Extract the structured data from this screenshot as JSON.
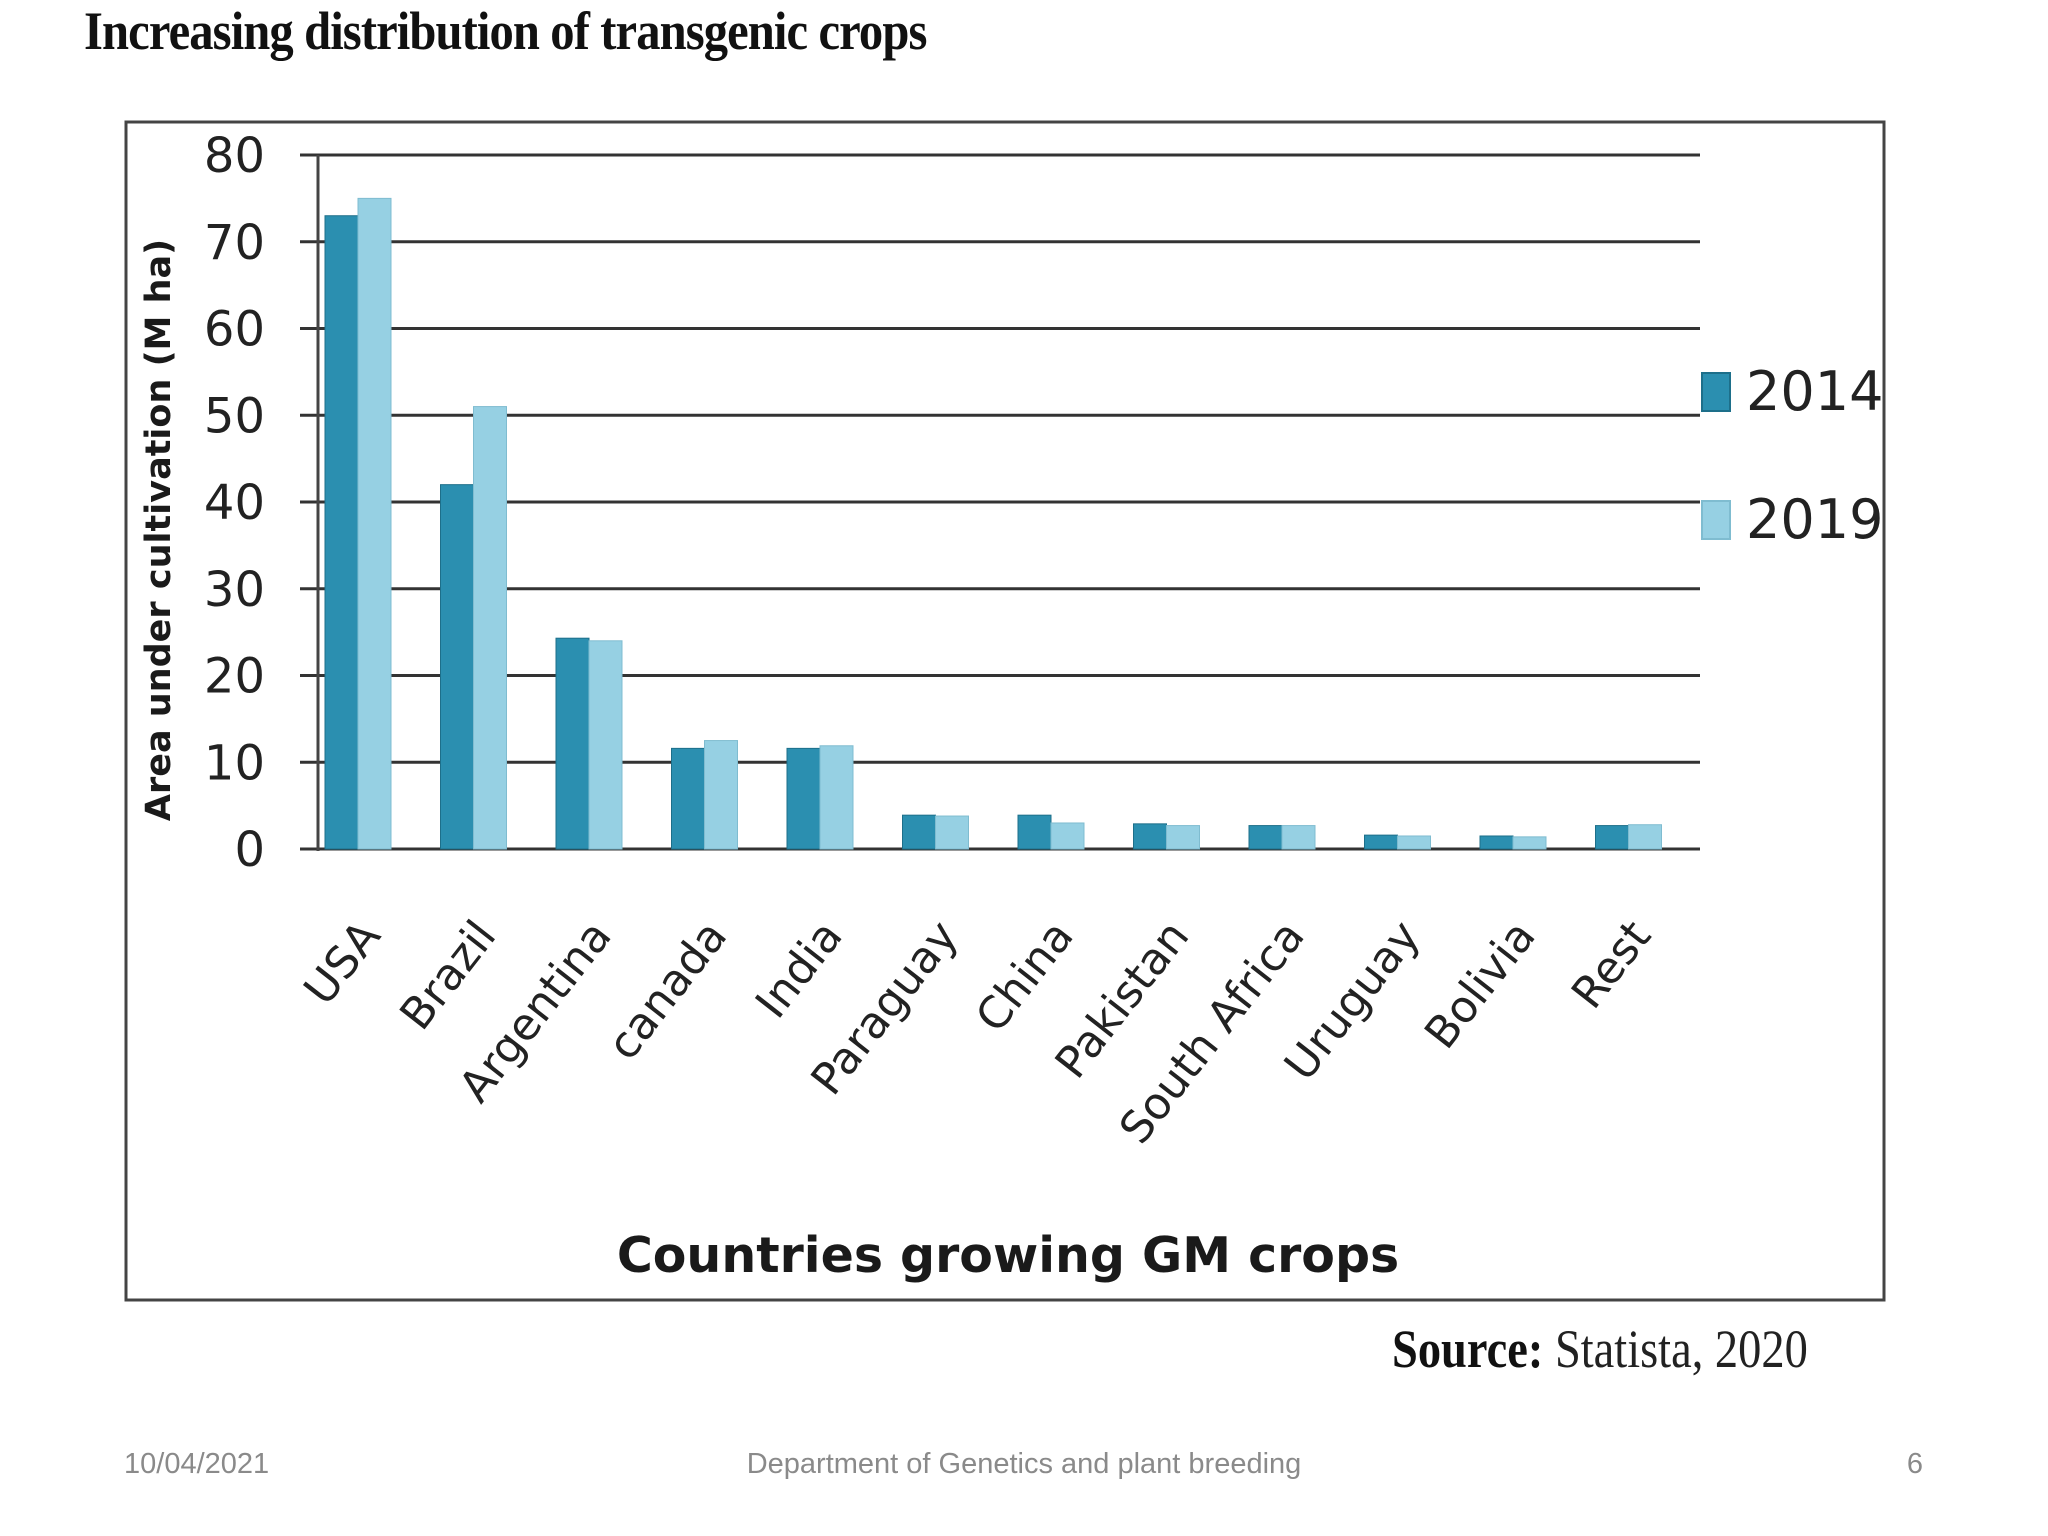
{
  "slide": {
    "title": "Increasing distribution of transgenic crops",
    "source_label": "Source:",
    "source_value": " Statista, 2020",
    "footer": {
      "date": "10/04/2021",
      "department": "Department of Genetics and plant breeding",
      "page_number": "6"
    }
  },
  "chart_data": {
    "type": "bar",
    "title": "",
    "xlabel": "Countries growing GM crops",
    "ylabel": "Area under cultivation  (M ha)",
    "ylim": [
      0,
      80
    ],
    "yticks": [
      0,
      10,
      20,
      30,
      40,
      50,
      60,
      70,
      80
    ],
    "grid": true,
    "legend_position": "right",
    "categories": [
      "USA",
      "Brazil",
      "Argentina",
      "canada",
      "India",
      "Paraguay",
      "China",
      "Pakistan",
      "South Africa",
      "Uruguay",
      "Bolivia",
      "Rest"
    ],
    "series": [
      {
        "name": "2014",
        "color": "#2b8fb0",
        "values": [
          73,
          42,
          24.3,
          11.6,
          11.6,
          3.9,
          3.9,
          2.9,
          2.7,
          1.6,
          1.5,
          2.7
        ]
      },
      {
        "name": "2019",
        "color": "#96d0e3",
        "values": [
          75,
          51,
          24,
          12.5,
          11.9,
          3.8,
          3.0,
          2.7,
          2.7,
          1.5,
          1.4,
          2.8
        ]
      }
    ]
  }
}
